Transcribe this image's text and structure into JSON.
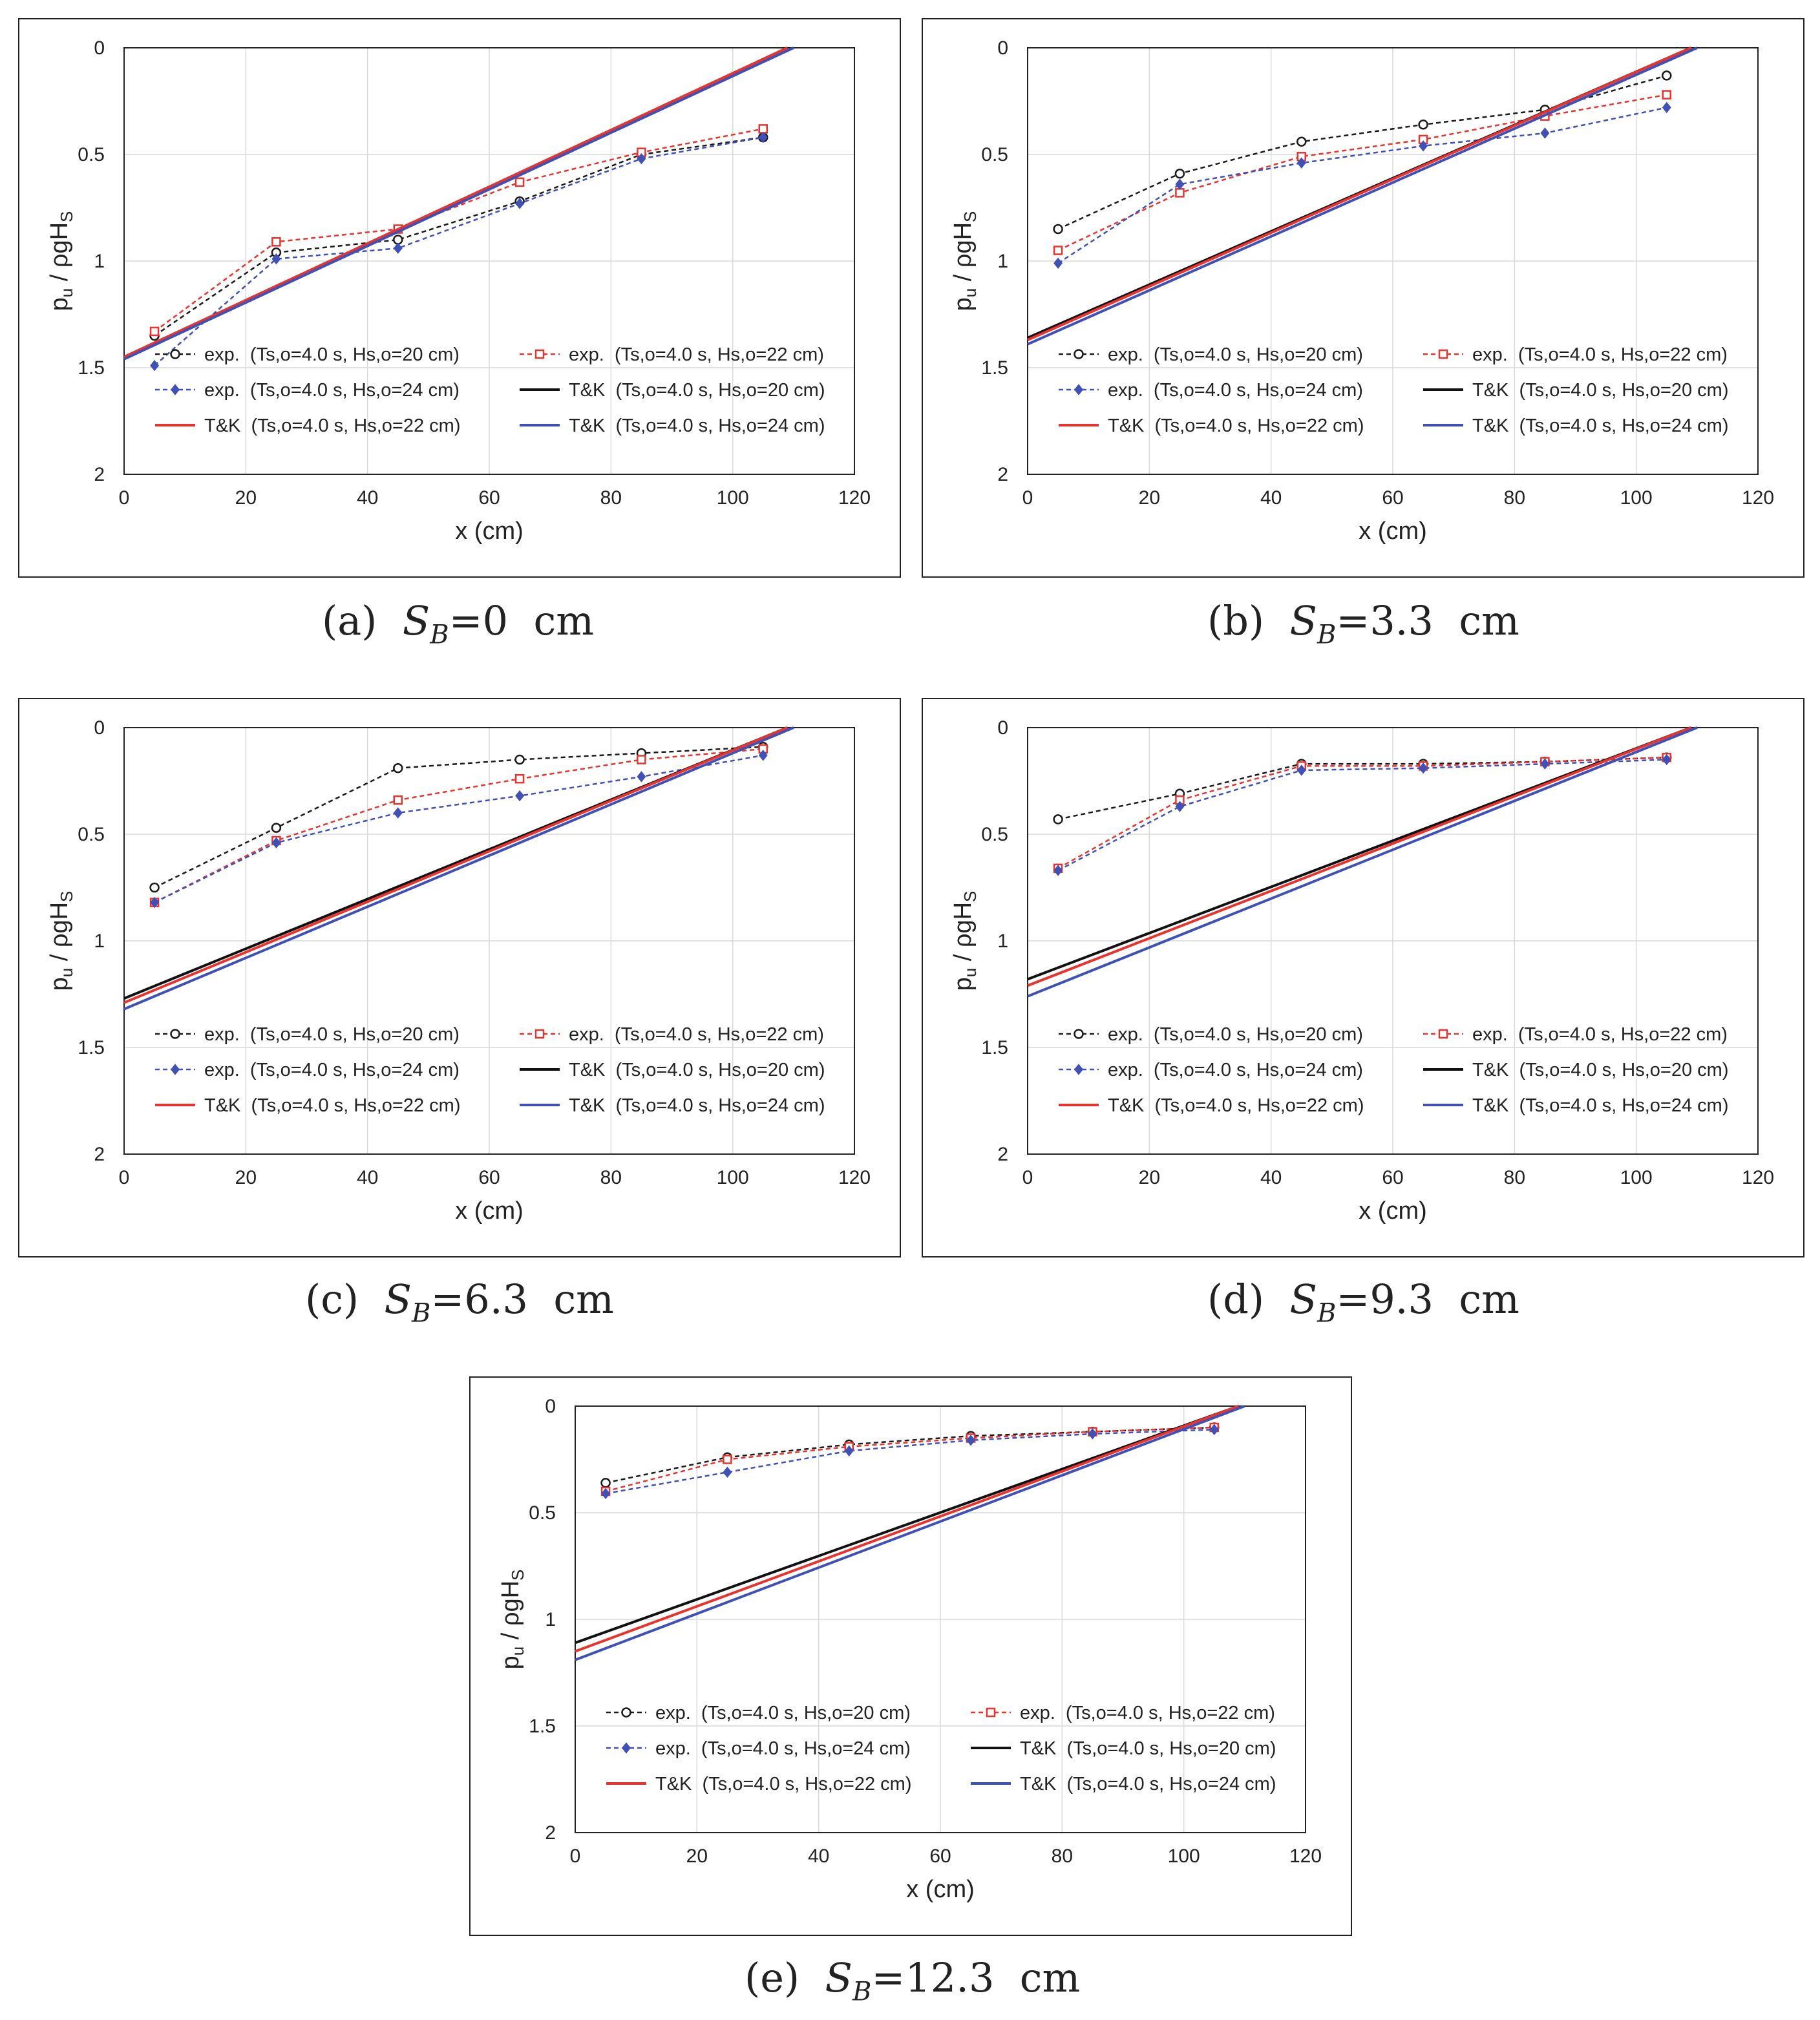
{
  "legend_labels": [
    "exp.  (Ts,o=4.0 s, Hs,o=20 cm)",
    "exp.  (Ts,o=4.0 s, Hs,o=22 cm)",
    "exp.  (Ts,o=4.0 s, Hs,o=24 cm)",
    "T&K  (Ts,o=4.0 s, Hs,o=20 cm)",
    "T&K  (Ts,o=4.0 s, Hs,o=22 cm)",
    "T&K  (Ts,o=4.0 s, Hs,o=24 cm)"
  ],
  "colors": {
    "exp_20": "#1a1a1a",
    "exp_22": "#e8332f",
    "exp_24": "#3f51b5",
    "tk_20": "#111111",
    "tk_22": "#e8332f",
    "tk_24": "#3f51b5",
    "grid": "#d9d9d9"
  },
  "chart_data": [
    {
      "type": "line",
      "caption": {
        "prefix": "(a)",
        "symbol": "S",
        "sub": "B",
        "value": "=0  cm"
      },
      "xlabel": "x (cm)",
      "ylabel": "p_u / ρgH_S",
      "xlim": [
        0,
        120
      ],
      "ylim": [
        0,
        2
      ],
      "y_reversed": true,
      "xticks": [
        0,
        20,
        40,
        60,
        80,
        100,
        120
      ],
      "yticks": [
        "0",
        "0.5",
        "1",
        "1.5",
        "2"
      ],
      "grid": true,
      "legend": "bottom",
      "x": [
        5,
        25,
        45,
        65,
        85,
        105
      ],
      "series": [
        {
          "name": "exp.  (Ts,o=4.0 s, Hs,o=20 cm)",
          "style": "exp",
          "values": [
            1.35,
            0.96,
            0.9,
            0.72,
            0.5,
            0.42
          ]
        },
        {
          "name": "exp.  (Ts,o=4.0 s, Hs,o=22 cm)",
          "style": "exp",
          "values": [
            1.33,
            0.91,
            0.85,
            0.63,
            0.49,
            0.38
          ]
        },
        {
          "name": "exp.  (Ts,o=4.0 s, Hs,o=24 cm)",
          "style": "exp",
          "values": [
            1.49,
            0.99,
            0.94,
            0.73,
            0.52,
            0.42
          ]
        },
        {
          "name": "T&K  (Ts,o=4.0 s, Hs,o=20 cm)",
          "style": "tk",
          "line": [
            [
              0,
              1.45
            ],
            [
              109,
              0
            ]
          ]
        },
        {
          "name": "T&K  (Ts,o=4.0 s, Hs,o=22 cm)",
          "style": "tk",
          "line": [
            [
              0,
              1.45
            ],
            [
              109,
              0
            ]
          ]
        },
        {
          "name": "T&K  (Ts,o=4.0 s, Hs,o=24 cm)",
          "style": "tk",
          "line": [
            [
              0,
              1.46
            ],
            [
              110,
              0
            ]
          ]
        }
      ]
    },
    {
      "type": "line",
      "caption": {
        "prefix": "(b)",
        "symbol": "S",
        "sub": "B",
        "value": "=3.3  cm"
      },
      "xlabel": "x (cm)",
      "ylabel": "p_u / ρgH_S",
      "xlim": [
        0,
        120
      ],
      "ylim": [
        0,
        2
      ],
      "y_reversed": true,
      "xticks": [
        0,
        20,
        40,
        60,
        80,
        100,
        120
      ],
      "yticks": [
        "0",
        "0.5",
        "1",
        "1.5",
        "2"
      ],
      "grid": true,
      "legend": "bottom",
      "x": [
        5,
        25,
        45,
        65,
        85,
        105
      ],
      "series": [
        {
          "name": "exp.  (Ts,o=4.0 s, Hs,o=20 cm)",
          "style": "exp",
          "values": [
            0.85,
            0.59,
            0.44,
            0.36,
            0.29,
            0.13
          ]
        },
        {
          "name": "exp.  (Ts,o=4.0 s, Hs,o=22 cm)",
          "style": "exp",
          "values": [
            0.95,
            0.68,
            0.51,
            0.43,
            0.32,
            0.22
          ]
        },
        {
          "name": "exp.  (Ts,o=4.0 s, Hs,o=24 cm)",
          "style": "exp",
          "values": [
            1.01,
            0.64,
            0.54,
            0.46,
            0.4,
            0.28
          ]
        },
        {
          "name": "T&K  (Ts,o=4.0 s, Hs,o=20 cm)",
          "style": "tk",
          "line": [
            [
              0,
              1.36
            ],
            [
              109,
              0
            ]
          ]
        },
        {
          "name": "T&K  (Ts,o=4.0 s, Hs,o=22 cm)",
          "style": "tk",
          "line": [
            [
              0,
              1.37
            ],
            [
              109,
              0
            ]
          ]
        },
        {
          "name": "T&K  (Ts,o=4.0 s, Hs,o=24 cm)",
          "style": "tk",
          "line": [
            [
              0,
              1.39
            ],
            [
              110,
              0
            ]
          ]
        }
      ]
    },
    {
      "type": "line",
      "caption": {
        "prefix": "(c)",
        "symbol": "S",
        "sub": "B",
        "value": "=6.3  cm"
      },
      "xlabel": "x (cm)",
      "ylabel": "p_u / ρgH_S",
      "xlim": [
        0,
        120
      ],
      "ylim": [
        0,
        2
      ],
      "y_reversed": true,
      "xticks": [
        0,
        20,
        40,
        60,
        80,
        100,
        120
      ],
      "yticks": [
        "0",
        "0.5",
        "1",
        "1.5",
        "2"
      ],
      "grid": true,
      "legend": "bottom",
      "x": [
        5,
        25,
        45,
        65,
        85,
        105
      ],
      "series": [
        {
          "name": "exp.  (Ts,o=4.0 s, Hs,o=20 cm)",
          "style": "exp",
          "values": [
            0.75,
            0.47,
            0.19,
            0.15,
            0.12,
            0.09
          ]
        },
        {
          "name": "exp.  (Ts,o=4.0 s, Hs,o=22 cm)",
          "style": "exp",
          "values": [
            0.82,
            0.53,
            0.34,
            0.24,
            0.15,
            0.1
          ]
        },
        {
          "name": "exp.  (Ts,o=4.0 s, Hs,o=24 cm)",
          "style": "exp",
          "values": [
            0.82,
            0.54,
            0.4,
            0.32,
            0.23,
            0.13
          ]
        },
        {
          "name": "T&K  (Ts,o=4.0 s, Hs,o=20 cm)",
          "style": "tk",
          "line": [
            [
              0,
              1.27
            ],
            [
              109,
              0
            ]
          ]
        },
        {
          "name": "T&K  (Ts,o=4.0 s, Hs,o=22 cm)",
          "style": "tk",
          "line": [
            [
              0,
              1.29
            ],
            [
              109,
              0
            ]
          ]
        },
        {
          "name": "T&K  (Ts,o=4.0 s, Hs,o=24 cm)",
          "style": "tk",
          "line": [
            [
              0,
              1.32
            ],
            [
              110,
              0
            ]
          ]
        }
      ]
    },
    {
      "type": "line",
      "caption": {
        "prefix": "(d)",
        "symbol": "S",
        "sub": "B",
        "value": "=9.3  cm"
      },
      "xlabel": "x (cm)",
      "ylabel": "p_u / ρgH_S",
      "xlim": [
        0,
        120
      ],
      "ylim": [
        0,
        2
      ],
      "y_reversed": true,
      "xticks": [
        0,
        20,
        40,
        60,
        80,
        100,
        120
      ],
      "yticks": [
        "0",
        "0.5",
        "1",
        "1.5",
        "2"
      ],
      "grid": true,
      "legend": "bottom",
      "x": [
        5,
        25,
        45,
        65,
        85,
        105
      ],
      "series": [
        {
          "name": "exp.  (Ts,o=4.0 s, Hs,o=20 cm)",
          "style": "exp",
          "values": [
            0.43,
            0.31,
            0.17,
            0.17,
            0.16,
            0.14
          ]
        },
        {
          "name": "exp.  (Ts,o=4.0 s, Hs,o=22 cm)",
          "style": "exp",
          "values": [
            0.66,
            0.34,
            0.18,
            0.18,
            0.16,
            0.14
          ]
        },
        {
          "name": "exp.  (Ts,o=4.0 s, Hs,o=24 cm)",
          "style": "exp",
          "values": [
            0.67,
            0.37,
            0.2,
            0.19,
            0.17,
            0.15
          ]
        },
        {
          "name": "T&K  (Ts,o=4.0 s, Hs,o=20 cm)",
          "style": "tk",
          "line": [
            [
              0,
              1.18
            ],
            [
              109,
              0
            ]
          ]
        },
        {
          "name": "T&K  (Ts,o=4.0 s, Hs,o=22 cm)",
          "style": "tk",
          "line": [
            [
              0,
              1.21
            ],
            [
              109,
              0
            ]
          ]
        },
        {
          "name": "T&K  (Ts,o=4.0 s, Hs,o=24 cm)",
          "style": "tk",
          "line": [
            [
              0,
              1.26
            ],
            [
              110,
              0
            ]
          ]
        }
      ]
    },
    {
      "type": "line",
      "caption": {
        "prefix": "(e)",
        "symbol": "S",
        "sub": "B",
        "value": "=12.3  cm"
      },
      "xlabel": "x (cm)",
      "ylabel": "p_u / ρgH_S",
      "xlim": [
        0,
        120
      ],
      "ylim": [
        0,
        2
      ],
      "y_reversed": true,
      "xticks": [
        0,
        20,
        40,
        60,
        80,
        100,
        120
      ],
      "yticks": [
        "0",
        "0.5",
        "1",
        "1.5",
        "2"
      ],
      "grid": true,
      "legend": "bottom",
      "x": [
        5,
        25,
        45,
        65,
        85,
        105
      ],
      "series": [
        {
          "name": "exp.  (Ts,o=4.0 s, Hs,o=20 cm)",
          "style": "exp",
          "values": [
            0.36,
            0.24,
            0.18,
            0.14,
            0.12,
            0.1
          ]
        },
        {
          "name": "exp.  (Ts,o=4.0 s, Hs,o=22 cm)",
          "style": "exp",
          "values": [
            0.4,
            0.25,
            0.19,
            0.15,
            0.12,
            0.1
          ]
        },
        {
          "name": "exp.  (Ts,o=4.0 s, Hs,o=24 cm)",
          "style": "exp",
          "values": [
            0.41,
            0.31,
            0.21,
            0.16,
            0.13,
            0.11
          ]
        },
        {
          "name": "T&K  (Ts,o=4.0 s, Hs,o=20 cm)",
          "style": "tk",
          "line": [
            [
              0,
              1.11
            ],
            [
              109,
              0
            ]
          ]
        },
        {
          "name": "T&K  (Ts,o=4.0 s, Hs,o=22 cm)",
          "style": "tk",
          "line": [
            [
              0,
              1.15
            ],
            [
              109,
              0
            ]
          ]
        },
        {
          "name": "T&K  (Ts,o=4.0 s, Hs,o=24 cm)",
          "style": "tk",
          "line": [
            [
              0,
              1.19
            ],
            [
              110,
              0
            ]
          ]
        }
      ]
    }
  ]
}
